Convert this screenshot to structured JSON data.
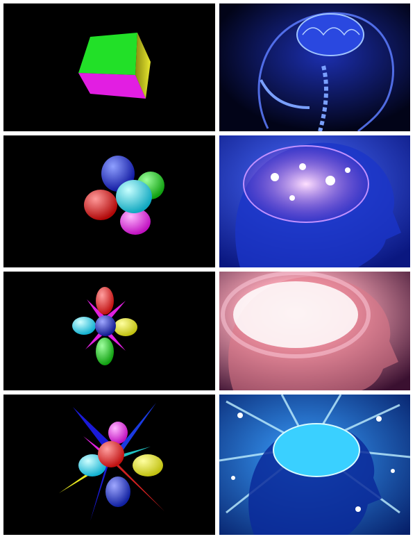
{
  "meme": {
    "rows": [
      {
        "stage": 1,
        "left": "rotating-cube",
        "right": "dim-brain-skull"
      },
      {
        "stage": 2,
        "left": "four-blob-cluster",
        "right": "glowing-brain"
      },
      {
        "stage": 3,
        "left": "flower-of-spheres-and-spikes",
        "right": "radiant-brain"
      },
      {
        "stage": 4,
        "left": "star-of-blades-and-spheres",
        "right": "cosmic-brain"
      }
    ]
  },
  "colors": {
    "background": "#000000",
    "frame": "#ffffff",
    "brain_blue": "#2a48e0",
    "brain_glow": "#9fe8ff"
  }
}
